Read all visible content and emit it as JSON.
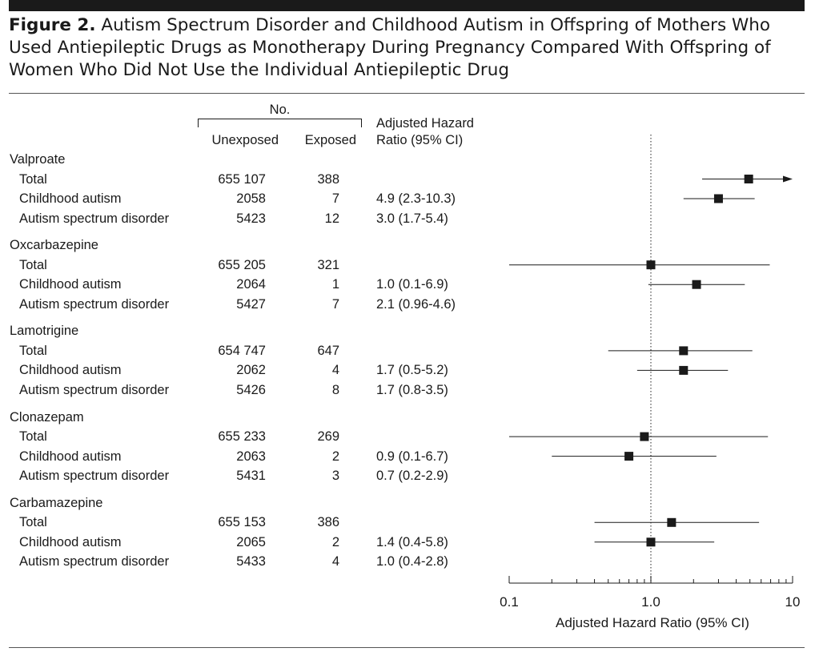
{
  "figure": {
    "label": "Figure 2.",
    "title": "Autism Spectrum Disorder and Childhood Autism in Offspring of Mothers Who Used Antiepileptic Drugs as Monotherapy During Pregnancy Compared With Offspring of Women Who Did Not Use the Individual Antiepileptic Drug"
  },
  "headers": {
    "no": "No.",
    "unexposed": "Unexposed",
    "exposed": "Exposed",
    "ahr_line1": "Adjusted Hazard",
    "ahr_line2": "Ratio (95% CI)"
  },
  "groups": [
    {
      "name": "Valproate",
      "rows": [
        {
          "label": "Total",
          "unexposed": "655 107",
          "exposed": "388"
        },
        {
          "label": "Childhood autism",
          "unexposed": "2058",
          "exposed": "7",
          "ci_text": "4.9 (2.3-10.3)"
        },
        {
          "label": "Autism spectrum disorder",
          "unexposed": "5423",
          "exposed": "12",
          "ci_text": "3.0 (1.7-5.4)"
        }
      ]
    },
    {
      "name": "Oxcarbazepine",
      "rows": [
        {
          "label": "Total",
          "unexposed": "655 205",
          "exposed": "321"
        },
        {
          "label": "Childhood autism",
          "unexposed": "2064",
          "exposed": "1",
          "ci_text": "1.0 (0.1-6.9)"
        },
        {
          "label": "Autism spectrum disorder",
          "unexposed": "5427",
          "exposed": "7",
          "ci_text": "2.1 (0.96-4.6)"
        }
      ]
    },
    {
      "name": "Lamotrigine",
      "rows": [
        {
          "label": "Total",
          "unexposed": "654 747",
          "exposed": "647"
        },
        {
          "label": "Childhood autism",
          "unexposed": "2062",
          "exposed": "4",
          "ci_text": "1.7 (0.5-5.2)"
        },
        {
          "label": "Autism spectrum disorder",
          "unexposed": "5426",
          "exposed": "8",
          "ci_text": "1.7 (0.8-3.5)"
        }
      ]
    },
    {
      "name": "Clonazepam",
      "rows": [
        {
          "label": "Total",
          "unexposed": "655 233",
          "exposed": "269"
        },
        {
          "label": "Childhood autism",
          "unexposed": "2063",
          "exposed": "2",
          "ci_text": "0.9 (0.1-6.7)"
        },
        {
          "label": "Autism spectrum disorder",
          "unexposed": "5431",
          "exposed": "3",
          "ci_text": "0.7 (0.2-2.9)"
        }
      ]
    },
    {
      "name": "Carbamazepine",
      "rows": [
        {
          "label": "Total",
          "unexposed": "655 153",
          "exposed": "386"
        },
        {
          "label": "Childhood autism",
          "unexposed": "2065",
          "exposed": "2",
          "ci_text": "1.4 (0.4-5.8)"
        },
        {
          "label": "Autism spectrum disorder",
          "unexposed": "5433",
          "exposed": "4",
          "ci_text": "1.0 (0.4-2.8)"
        }
      ]
    }
  ],
  "chart_data": {
    "type": "scatter",
    "subtype": "forest-plot",
    "xlabel": "Adjusted Hazard Ratio (95% CI)",
    "xscale": "log",
    "xlim": [
      0.1,
      10
    ],
    "xticks": [
      0.1,
      1.0,
      10
    ],
    "xtick_labels": [
      "0.1",
      "1.0",
      "10"
    ],
    "reference_line": 1.0,
    "grid": false,
    "points": [
      {
        "group": "Valproate",
        "outcome": "Childhood autism",
        "hr": 4.9,
        "lo": 2.3,
        "hi": 10.3
      },
      {
        "group": "Valproate",
        "outcome": "Autism spectrum disorder",
        "hr": 3.0,
        "lo": 1.7,
        "hi": 5.4
      },
      {
        "group": "Oxcarbazepine",
        "outcome": "Childhood autism",
        "hr": 1.0,
        "lo": 0.1,
        "hi": 6.9
      },
      {
        "group": "Oxcarbazepine",
        "outcome": "Autism spectrum disorder",
        "hr": 2.1,
        "lo": 0.96,
        "hi": 4.6
      },
      {
        "group": "Lamotrigine",
        "outcome": "Childhood autism",
        "hr": 1.7,
        "lo": 0.5,
        "hi": 5.2
      },
      {
        "group": "Lamotrigine",
        "outcome": "Autism spectrum disorder",
        "hr": 1.7,
        "lo": 0.8,
        "hi": 3.5
      },
      {
        "group": "Clonazepam",
        "outcome": "Childhood autism",
        "hr": 0.9,
        "lo": 0.1,
        "hi": 6.7
      },
      {
        "group": "Clonazepam",
        "outcome": "Autism spectrum disorder",
        "hr": 0.7,
        "lo": 0.2,
        "hi": 2.9
      },
      {
        "group": "Carbamazepine",
        "outcome": "Childhood autism",
        "hr": 1.4,
        "lo": 0.4,
        "hi": 5.8
      },
      {
        "group": "Carbamazepine",
        "outcome": "Autism spectrum disorder",
        "hr": 1.0,
        "lo": 0.4,
        "hi": 2.8
      }
    ]
  }
}
